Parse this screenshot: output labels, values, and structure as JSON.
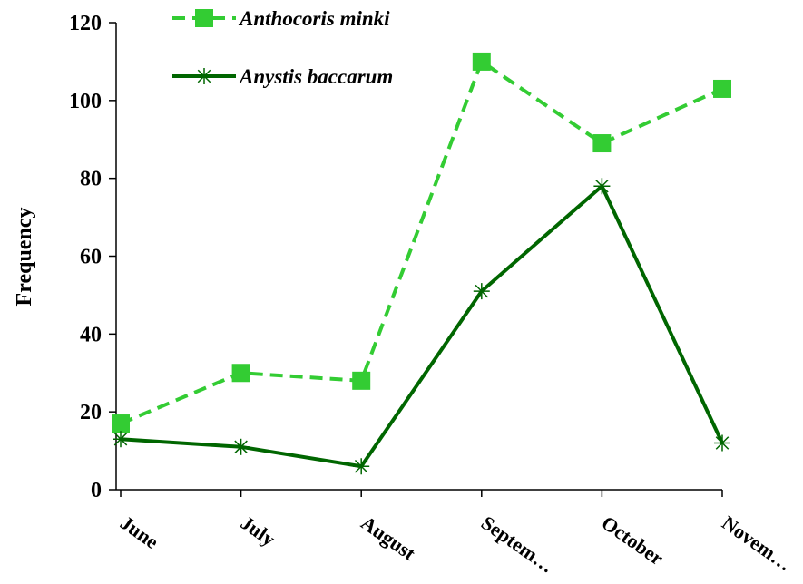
{
  "chart_data": {
    "type": "line",
    "categories": [
      "June",
      "July",
      "August",
      "Septem…",
      "October",
      "Novem…"
    ],
    "series": [
      {
        "name": "Anthocoris minki",
        "values": [
          17,
          30,
          28,
          110,
          89,
          103
        ],
        "color": "#33cc33",
        "line_style": "dashed",
        "marker": "square"
      },
      {
        "name": "Anystis baccarum",
        "values": [
          13,
          11,
          6,
          51,
          78,
          12
        ],
        "color": "#006600",
        "line_style": "solid",
        "marker": "asterisk"
      }
    ],
    "title": "",
    "xlabel": "",
    "ylabel": "Frequency",
    "ylim": [
      0,
      120
    ],
    "yticks": [
      0,
      20,
      40,
      60,
      80,
      100,
      120
    ],
    "grid": false,
    "legend_position": "top"
  }
}
